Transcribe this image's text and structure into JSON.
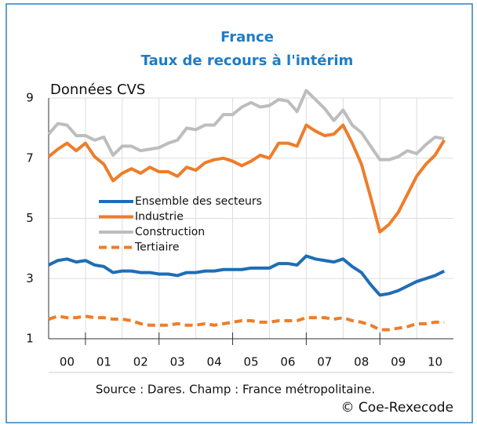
{
  "chart_data": {
    "type": "line",
    "title": "France",
    "subtitle": "Taux de recours à l'intérim",
    "y_label": "Données CVS",
    "source": "Source : Dares. Champ : France métropolitaine.",
    "credit": "© Coe-Rexecode",
    "categories": [
      "00",
      "01",
      "02",
      "03",
      "04",
      "05",
      "06",
      "07",
      "08",
      "09",
      "10"
    ],
    "x": [
      2000,
      2000.25,
      2000.5,
      2000.75,
      2001,
      2001.25,
      2001.5,
      2001.75,
      2002,
      2002.25,
      2002.5,
      2002.75,
      2003,
      2003.25,
      2003.5,
      2003.75,
      2004,
      2004.25,
      2004.5,
      2004.75,
      2005,
      2005.25,
      2005.5,
      2005.75,
      2006,
      2006.25,
      2006.5,
      2006.75,
      2007,
      2007.25,
      2007.5,
      2007.75,
      2008,
      2008.25,
      2008.5,
      2008.75,
      2009,
      2009.25,
      2009.5,
      2009.75,
      2010,
      2010.25,
      2010.5,
      2010.75
    ],
    "xlim": [
      2000,
      2011
    ],
    "ylim": [
      1,
      9
    ],
    "yticks": [
      1,
      3,
      5,
      7,
      9
    ],
    "grid": true,
    "series": [
      {
        "name": "Ensemble des secteurs",
        "color": "#1f6db5",
        "dash": false,
        "values": [
          3.45,
          3.6,
          3.65,
          3.55,
          3.6,
          3.45,
          3.4,
          3.2,
          3.25,
          3.25,
          3.2,
          3.2,
          3.15,
          3.15,
          3.1,
          3.2,
          3.2,
          3.25,
          3.25,
          3.3,
          3.3,
          3.3,
          3.35,
          3.35,
          3.35,
          3.5,
          3.5,
          3.45,
          3.75,
          3.65,
          3.6,
          3.55,
          3.65,
          3.4,
          3.2,
          2.8,
          2.45,
          2.5,
          2.6,
          2.75,
          2.9,
          3.0,
          3.1,
          3.25
        ]
      },
      {
        "name": "Industrie",
        "color": "#ee7d2a",
        "dash": false,
        "values": [
          7.05,
          7.3,
          7.5,
          7.25,
          7.5,
          7.05,
          6.8,
          6.25,
          6.5,
          6.65,
          6.5,
          6.7,
          6.55,
          6.55,
          6.4,
          6.7,
          6.6,
          6.85,
          6.95,
          7.0,
          6.9,
          6.75,
          6.9,
          7.1,
          7.0,
          7.5,
          7.5,
          7.4,
          8.1,
          7.9,
          7.75,
          7.8,
          8.1,
          7.5,
          6.8,
          5.7,
          4.55,
          4.8,
          5.2,
          5.8,
          6.4,
          6.8,
          7.1,
          7.6
        ]
      },
      {
        "name": "Construction",
        "color": "#bdbdbd",
        "dash": false,
        "values": [
          7.8,
          8.15,
          8.1,
          7.75,
          7.75,
          7.6,
          7.7,
          7.1,
          7.4,
          7.4,
          7.25,
          7.3,
          7.35,
          7.5,
          7.6,
          8.0,
          7.95,
          8.1,
          8.1,
          8.45,
          8.45,
          8.7,
          8.85,
          8.7,
          8.75,
          8.95,
          8.9,
          8.55,
          9.25,
          8.95,
          8.65,
          8.25,
          8.6,
          8.1,
          7.85,
          7.4,
          6.95,
          6.95,
          7.05,
          7.25,
          7.15,
          7.45,
          7.7,
          7.65
        ]
      },
      {
        "name": "Tertiaire",
        "color": "#ee7d2a",
        "dash": true,
        "values": [
          1.65,
          1.75,
          1.7,
          1.7,
          1.75,
          1.7,
          1.7,
          1.65,
          1.65,
          1.6,
          1.5,
          1.45,
          1.45,
          1.45,
          1.5,
          1.45,
          1.45,
          1.5,
          1.45,
          1.5,
          1.55,
          1.6,
          1.6,
          1.55,
          1.55,
          1.6,
          1.6,
          1.6,
          1.7,
          1.7,
          1.7,
          1.65,
          1.7,
          1.6,
          1.55,
          1.45,
          1.3,
          1.3,
          1.35,
          1.4,
          1.5,
          1.5,
          1.55,
          1.55
        ]
      }
    ]
  }
}
